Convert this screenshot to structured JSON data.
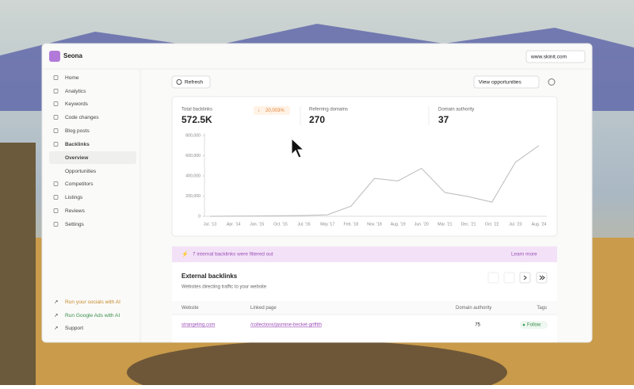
{
  "app": {
    "logo": "Seona",
    "site": "www.skinit.com"
  },
  "sidebar": {
    "items": [
      "Home",
      "Analytics",
      "Keywords",
      "Code changes",
      "Blog posts",
      "Backlinks",
      "Overview",
      "Opportunities",
      "Competitors",
      "Listings",
      "Reviews",
      "Settings"
    ],
    "bottom": [
      "Run your socials with AI",
      "Run Google Ads with AI",
      "Support"
    ]
  },
  "toolbar": {
    "refresh": "Refresh",
    "view": "View opportunities"
  },
  "stats": [
    {
      "label": "Total backlinks",
      "value": "572.5K",
      "change": "20,003%"
    },
    {
      "label": "Referring domains",
      "value": "270"
    },
    {
      "label": "Domain authority",
      "value": "37"
    }
  ],
  "chart_data": {
    "type": "line",
    "categories": [
      "Jul. '13",
      "Apr. '14",
      "Jan. '15",
      "Oct. '15",
      "Jul. '16",
      "May '17",
      "Feb. '18",
      "Nov. '18",
      "Aug. '19",
      "Jun. '20",
      "Mar. '21",
      "Dec. '21",
      "Oct. '22",
      "Jul. '23",
      "Aug. '24"
    ],
    "values": [
      0,
      2000,
      3000,
      5000,
      8000,
      15000,
      100000,
      375000,
      350000,
      475000,
      235000,
      195000,
      140000,
      535000,
      700000
    ],
    "color": "#b9b9b9",
    "ylim": [
      0,
      800000
    ],
    "yticks": [
      0,
      {
        "value": 200000,
        "label": "200,000"
      },
      {
        "value": 400000,
        "label": "400,000"
      },
      {
        "value": 600000,
        "label": "600,000"
      },
      {
        "value": 800000,
        "label": "800,000"
      }
    ],
    "grid": false
  },
  "banner": {
    "text": "7 internal backlinks were filtered out",
    "link": "Learn more"
  },
  "backlinks": {
    "title": "External backlinks",
    "subtitle": "Websites directing traffic to your website",
    "columns": [
      "Website",
      "Linked page",
      "Domain authority",
      "Tags"
    ],
    "rows": [
      [
        "strangeling.com",
        "/collections/jasmine-becket-griffith",
        "75",
        "Follow"
      ]
    ]
  }
}
